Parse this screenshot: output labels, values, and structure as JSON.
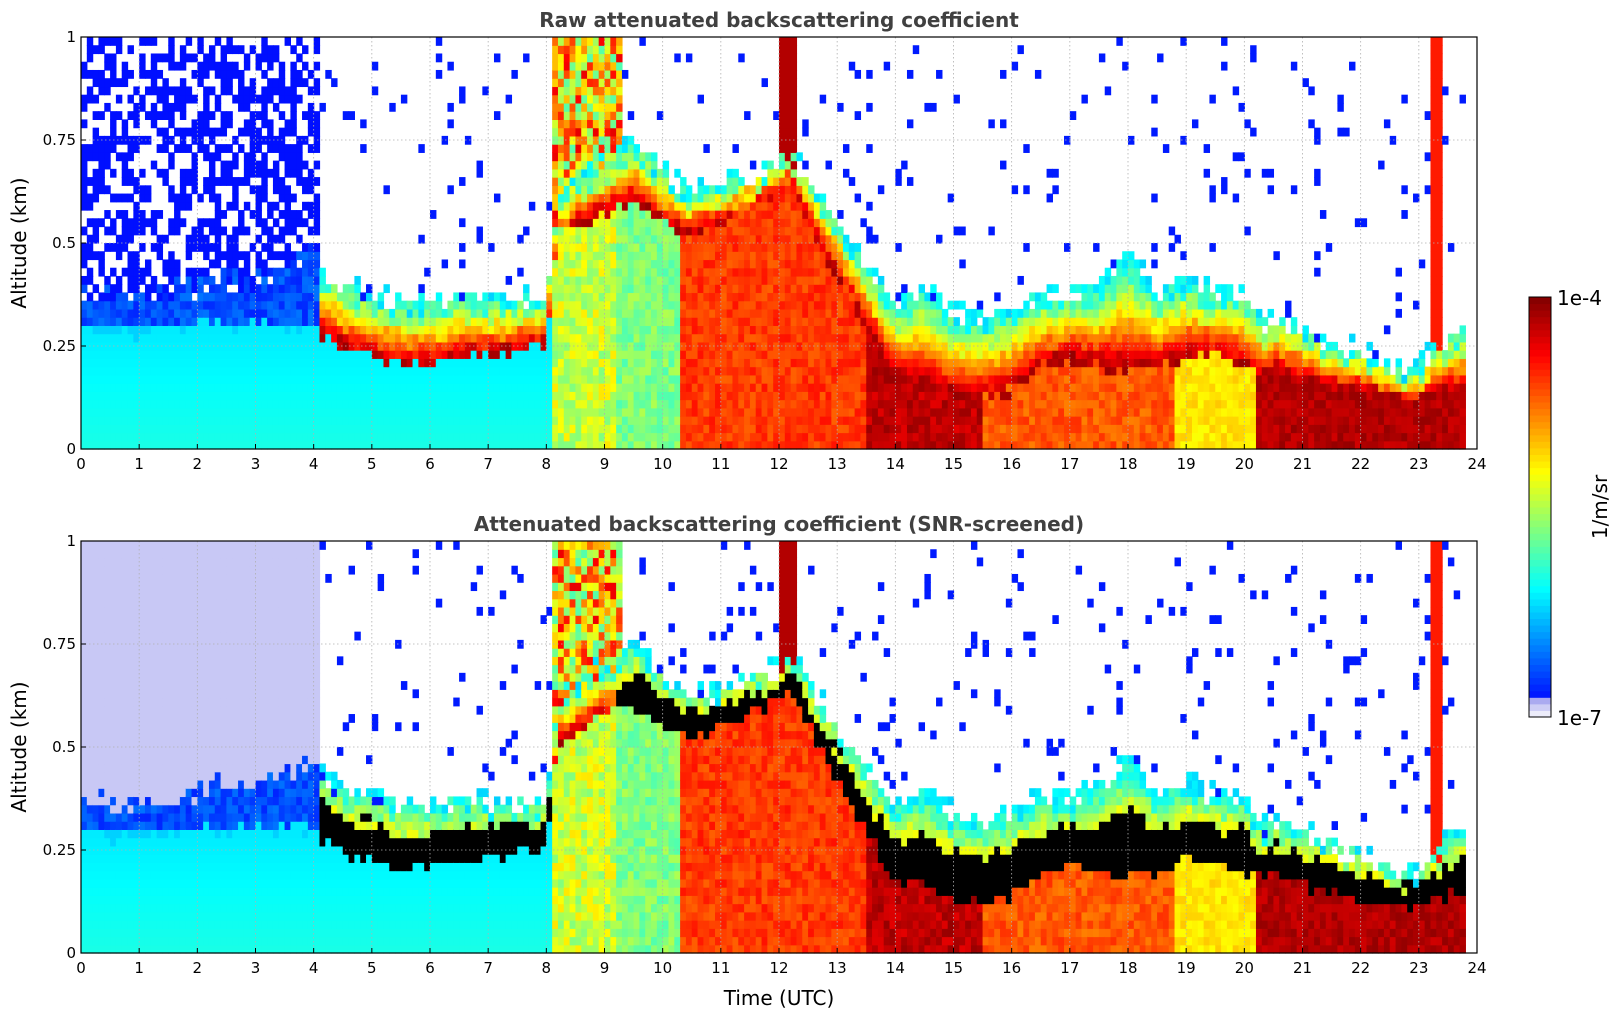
{
  "chart_data": [
    {
      "type": "heatmap",
      "title": "Raw attenuated backscattering coefficient",
      "ylabel": "Altitude (km)",
      "xlabel": "",
      "xlim": [
        0,
        24
      ],
      "ylim": [
        0,
        1
      ],
      "x_ticks": [
        "0",
        "1",
        "2",
        "3",
        "4",
        "5",
        "6",
        "7",
        "8",
        "9",
        "10",
        "11",
        "12",
        "13",
        "14",
        "15",
        "16",
        "17",
        "18",
        "19",
        "20",
        "21",
        "22",
        "23",
        "24"
      ],
      "y_ticks": [
        "0",
        "0.25",
        "0.5",
        "0.75",
        "1"
      ],
      "grid": true,
      "screened": false,
      "colorbar": {
        "label": "1/m/sr",
        "min_label": "1e-7",
        "max_label": "1e-4",
        "scale": "log",
        "colormap": "jet"
      },
      "profile_x": [
        0,
        0.5,
        1,
        1.5,
        2,
        2.5,
        3,
        3.5,
        4,
        4.2,
        4.6,
        5,
        5.5,
        6,
        6.5,
        7,
        7.5,
        8,
        8.2,
        9,
        9.5,
        10,
        10.4,
        11,
        11.5,
        12,
        12.2,
        12.5,
        13,
        13.5,
        14,
        14.5,
        15,
        15.5,
        16,
        16.5,
        17,
        17.5,
        18,
        18.5,
        19,
        19.5,
        20,
        20.3,
        20.5,
        21,
        21.5,
        22,
        22.5,
        23,
        23.3,
        23.5,
        23.8
      ],
      "boundary_layer_top_km": [
        0.38,
        0.36,
        0.36,
        0.38,
        0.4,
        0.41,
        0.4,
        0.44,
        0.48,
        0.42,
        0.4,
        0.38,
        0.36,
        0.36,
        0.38,
        0.36,
        0.37,
        0.36,
        0.62,
        0.7,
        0.75,
        0.68,
        0.63,
        0.64,
        0.66,
        0.7,
        0.72,
        0.66,
        0.55,
        0.45,
        0.36,
        0.4,
        0.34,
        0.32,
        0.35,
        0.38,
        0.38,
        0.4,
        0.48,
        0.38,
        0.42,
        0.38,
        0.38,
        0.3,
        0.32,
        0.3,
        0.26,
        0.24,
        0.2,
        0.2,
        0.25,
        0.28,
        0.3
      ],
      "cloud_base_km": [
        0.3,
        0.28,
        0.28,
        0.3,
        0.3,
        0.3,
        0.3,
        0.3,
        0.3,
        0.27,
        0.24,
        0.22,
        0.2,
        0.2,
        0.22,
        0.23,
        0.24,
        0.25,
        0.52,
        0.57,
        0.6,
        0.55,
        0.52,
        0.55,
        0.58,
        0.62,
        0.64,
        0.55,
        0.42,
        0.3,
        0.17,
        0.16,
        0.13,
        0.12,
        0.14,
        0.2,
        0.22,
        0.2,
        0.19,
        0.2,
        0.22,
        0.23,
        0.2,
        0.18,
        0.19,
        0.17,
        0.15,
        0.14,
        0.12,
        0.11,
        0.14,
        0.14,
        0.14
      ]
    },
    {
      "type": "heatmap",
      "title": "Attenuated backscattering coefficient (SNR-screened)",
      "ylabel": "Altitude (km)",
      "xlabel": "Time (UTC)",
      "xlim": [
        0,
        24
      ],
      "ylim": [
        0,
        1
      ],
      "x_ticks": [
        "0",
        "1",
        "2",
        "3",
        "4",
        "5",
        "6",
        "7",
        "8",
        "9",
        "10",
        "11",
        "12",
        "13",
        "14",
        "15",
        "16",
        "17",
        "18",
        "19",
        "20",
        "21",
        "22",
        "23",
        "24"
      ],
      "y_ticks": [
        "0",
        "0.25",
        "0.5",
        "0.75",
        "1"
      ],
      "grid": true,
      "screened": true
    }
  ]
}
